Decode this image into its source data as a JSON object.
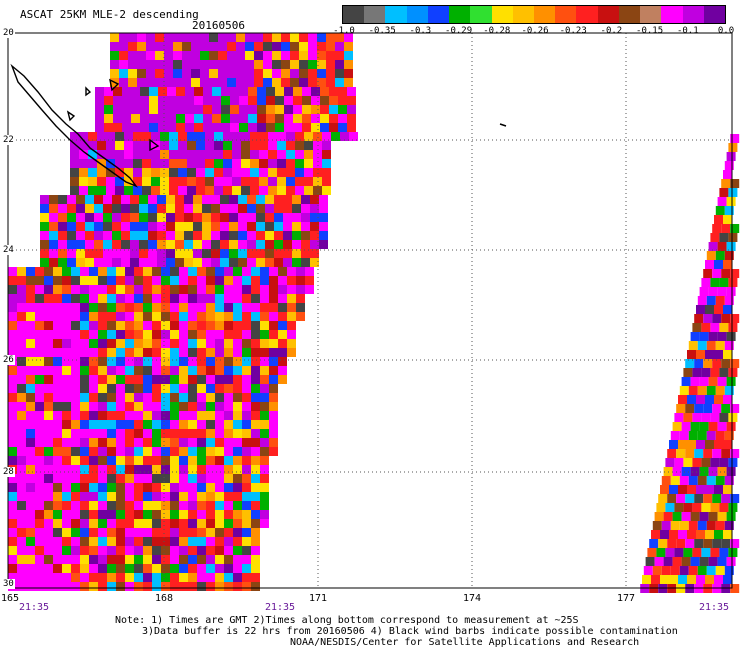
{
  "title": "ASCAT 25KM MLE-2 descending",
  "date": "20160506",
  "colorbar": {
    "colors": [
      "#444444",
      "#777777",
      "#00bfff",
      "#0090ff",
      "#1040ff",
      "#00b000",
      "#30e030",
      "#ffe000",
      "#ffc000",
      "#ff9000",
      "#ff5010",
      "#ff2020",
      "#c81010",
      "#8b4513",
      "#c08060",
      "#ff00ff",
      "#c000e0",
      "#7000a0"
    ],
    "labels": [
      "-1.0",
      "-0.35",
      "-0.3",
      "-0.29",
      "-0.28",
      "-0.26",
      "-0.23",
      "-0.2",
      "-0.15",
      "-0.1",
      "0.0"
    ]
  },
  "axes": {
    "lon_labels": [
      "165",
      "168",
      "171",
      "174",
      "177"
    ],
    "lat_labels": [
      "20",
      "22",
      "24",
      "26",
      "28",
      "30"
    ],
    "time_labels": [
      "21:35",
      "21:35",
      "21:35"
    ]
  },
  "notes": {
    "line1": "Note: 1) Times are GMT 2)Times along bottom correspond to measurement at ~25S",
    "line2": "3)Data buffer is 22 hrs from 20160506 4) Black wind barbs indicate possible contamination",
    "line3": "NOAA/NESDIS/Center for Satellite Applications and Research"
  }
}
